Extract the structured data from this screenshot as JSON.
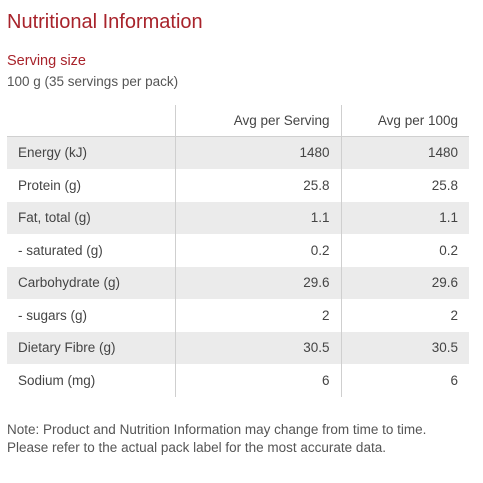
{
  "title": "Nutritional Information",
  "serving": {
    "heading": "Serving size",
    "value": "100 g (35 servings per pack)"
  },
  "table": {
    "headers": [
      "",
      "Avg per Serving",
      "Avg per 100g"
    ],
    "rows": [
      {
        "label": "Energy (kJ)",
        "per_serving": "1480",
        "per_100g": "1480"
      },
      {
        "label": "Protein (g)",
        "per_serving": "25.8",
        "per_100g": "25.8"
      },
      {
        "label": "Fat, total (g)",
        "per_serving": "1.1",
        "per_100g": "1.1"
      },
      {
        "label": "- saturated (g)",
        "per_serving": "0.2",
        "per_100g": "0.2"
      },
      {
        "label": "Carbohydrate (g)",
        "per_serving": "29.6",
        "per_100g": "29.6"
      },
      {
        "label": "- sugars (g)",
        "per_serving": "2",
        "per_100g": "2"
      },
      {
        "label": "Dietary Fibre (g)",
        "per_serving": "30.5",
        "per_100g": "30.5"
      },
      {
        "label": "Sodium (mg)",
        "per_serving": "6",
        "per_100g": "6"
      }
    ]
  },
  "note": "Note: Product and Nutrition Information may change from time to time. Please refer to the actual pack label for the most accurate data.",
  "colors": {
    "heading": "#a8232b",
    "text": "#444444",
    "row_shade": "#ebebeb",
    "divider": "#cfcfcf"
  }
}
